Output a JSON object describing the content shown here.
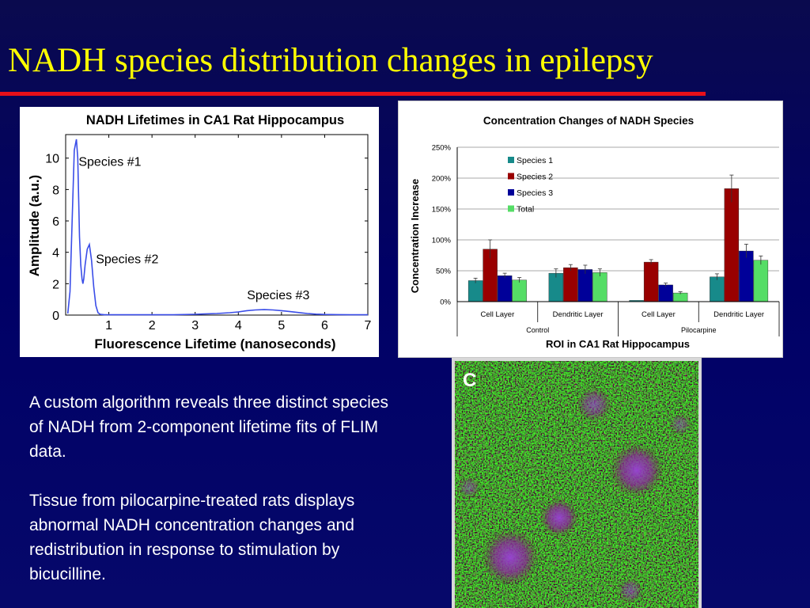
{
  "slide": {
    "title": "NADH species distribution changes in epilepsy",
    "colors": {
      "background": "#000066",
      "title": "#ffff00",
      "rule": "#e8101a",
      "text": "#ffffff"
    },
    "paragraphs": [
      "A custom algorithm reveals three distinct species of NADH from 2-component lifetime fits of FLIM data.",
      "Tissue from pilocarpine-treated rats displays abnormal NADH concentration changes and redistribution in response to stimulation by bicucilline."
    ],
    "image_label": "C"
  },
  "chart_data": [
    {
      "type": "line",
      "title": "NADH Lifetimes in CA1 Rat Hippocampus",
      "xlabel": "Fluorescence Lifetime (nanoseconds)",
      "ylabel": "Amplitude (a.u.)",
      "xlim": [
        0,
        7
      ],
      "ylim": [
        0,
        11.5
      ],
      "xticks": [
        1,
        2,
        3,
        4,
        5,
        6,
        7
      ],
      "yticks": [
        0,
        2,
        4,
        6,
        8,
        10
      ],
      "color": "#3a4de8",
      "grid": false,
      "annotations": [
        {
          "text": "Species #1",
          "x": 0.3,
          "y": 9.5
        },
        {
          "text": "Species #2",
          "x": 0.7,
          "y": 3.3
        },
        {
          "text": "Species #3",
          "x": 4.2,
          "y": 1.0
        }
      ],
      "series": [
        {
          "x": [
            0.05,
            0.1,
            0.15,
            0.2,
            0.25,
            0.28,
            0.3,
            0.32,
            0.35,
            0.38,
            0.4,
            0.42,
            0.45,
            0.5,
            0.55,
            0.6,
            0.65,
            0.7,
            0.75,
            0.8,
            0.9,
            1.0,
            1.2,
            1.5,
            2.0,
            2.5,
            3.0,
            3.5,
            3.8,
            4.0,
            4.2,
            4.4,
            4.6,
            4.8,
            5.0,
            5.2,
            5.4,
            5.6,
            5.8,
            6.0,
            6.3,
            6.6,
            7.0
          ],
          "y": [
            0.1,
            1.5,
            6.0,
            10.5,
            11.2,
            10.0,
            7.5,
            5.0,
            3.2,
            2.3,
            2.0,
            2.3,
            3.2,
            4.2,
            4.5,
            3.5,
            1.8,
            0.6,
            0.15,
            0.05,
            0.02,
            0.02,
            0.02,
            0.02,
            0.02,
            0.02,
            0.05,
            0.1,
            0.15,
            0.2,
            0.28,
            0.33,
            0.35,
            0.33,
            0.28,
            0.22,
            0.16,
            0.1,
            0.06,
            0.04,
            0.03,
            0.02,
            0.02
          ]
        }
      ]
    },
    {
      "type": "bar",
      "title": "Concentration Changes of NADH Species",
      "xlabel": "ROI in CA1 Rat Hippocampus",
      "ylabel": "Concentration Increase",
      "ylim": [
        0,
        250
      ],
      "yticks": [
        "0%",
        "50%",
        "100%",
        "150%",
        "200%",
        "250%"
      ],
      "grid": true,
      "legend": "top-left",
      "categories": [
        "Cell Layer",
        "Dendritic Layer",
        "Cell Layer",
        "Dendritic Layer"
      ],
      "groups": [
        {
          "label": "Control",
          "span": [
            0,
            1
          ]
        },
        {
          "label": "Pilocarpine",
          "span": [
            2,
            3
          ]
        }
      ],
      "series": [
        {
          "name": "Species 1",
          "color": "#178a8a",
          "values": [
            34,
            46,
            2,
            40
          ],
          "errors": [
            4,
            7,
            0,
            5
          ]
        },
        {
          "name": "Species 2",
          "color": "#990000",
          "values": [
            85,
            55,
            64,
            183
          ],
          "errors": [
            15,
            5,
            4,
            22
          ]
        },
        {
          "name": "Species 3",
          "color": "#000099",
          "values": [
            42,
            52,
            27,
            82
          ],
          "errors": [
            4,
            7,
            3,
            11
          ]
        },
        {
          "name": "Total",
          "color": "#55dd66",
          "values": [
            35,
            47,
            14,
            67
          ],
          "errors": [
            4,
            6,
            2,
            7
          ]
        }
      ]
    }
  ]
}
